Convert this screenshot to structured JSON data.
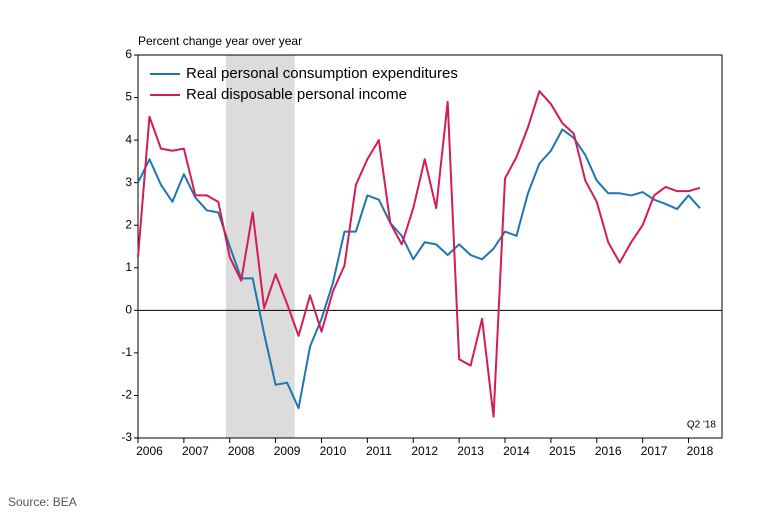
{
  "chart_data": {
    "type": "line",
    "ylabel": "Percent change year over year",
    "annotation": "Q2 '18",
    "source": "Source: BEA",
    "x": [
      2006,
      2006.25,
      2006.5,
      2006.75,
      2007,
      2007.25,
      2007.5,
      2007.75,
      2008,
      2008.25,
      2008.5,
      2008.75,
      2009,
      2009.25,
      2009.5,
      2009.75,
      2010,
      2010.25,
      2010.5,
      2010.75,
      2011,
      2011.25,
      2011.5,
      2011.75,
      2012,
      2012.25,
      2012.5,
      2012.75,
      2013,
      2013.25,
      2013.5,
      2013.75,
      2014,
      2014.25,
      2014.5,
      2014.75,
      2015,
      2015.25,
      2015.5,
      2015.75,
      2016,
      2016.25,
      2016.5,
      2016.75,
      2017,
      2017.25,
      2017.5,
      2017.75,
      2018,
      2018.25
    ],
    "series": [
      {
        "name": "Real personal consumption expenditures",
        "color": "#1f77b0",
        "values": [
          3.0,
          3.55,
          2.95,
          2.55,
          3.2,
          2.65,
          2.35,
          2.3,
          1.5,
          0.75,
          0.75,
          -0.55,
          -1.75,
          -1.7,
          -2.3,
          -0.85,
          -0.2,
          0.65,
          1.85,
          1.85,
          2.7,
          2.6,
          2.05,
          1.75,
          1.2,
          1.6,
          1.55,
          1.3,
          1.55,
          1.3,
          1.2,
          1.45,
          1.85,
          1.75,
          2.75,
          3.45,
          3.75,
          4.25,
          4.05,
          3.65,
          3.05,
          2.75,
          2.75,
          2.7,
          2.78,
          2.6,
          2.5,
          2.38,
          2.7,
          2.4
        ]
      },
      {
        "name": "Real disposable personal income",
        "color": "#d41c55",
        "values": [
          1.25,
          4.55,
          3.8,
          3.75,
          3.8,
          2.7,
          2.7,
          2.55,
          1.25,
          0.7,
          2.3,
          0.05,
          0.85,
          0.15,
          -0.6,
          0.35,
          -0.5,
          0.45,
          1.05,
          2.95,
          3.55,
          4.0,
          2.05,
          1.55,
          2.4,
          3.55,
          2.4,
          4.9,
          -1.15,
          -1.3,
          -0.2,
          -2.5,
          3.1,
          3.6,
          4.3,
          5.15,
          4.85,
          4.4,
          4.15,
          3.05,
          2.55,
          1.6,
          1.12,
          1.6,
          2.0,
          2.7,
          2.9,
          2.8,
          2.8,
          2.88
        ]
      }
    ],
    "recession": [
      2007.917,
      2009.417
    ],
    "xlim": [
      2006,
      2018.73
    ],
    "xticks": [
      2006,
      2007,
      2008,
      2009,
      2010,
      2011,
      2012,
      2013,
      2014,
      2015,
      2016,
      2017,
      2018
    ],
    "ylim": [
      -3,
      6
    ],
    "yticks": [
      -3,
      -2,
      -1,
      0,
      1,
      2,
      3,
      4,
      5,
      6
    ],
    "legend": "upper left"
  }
}
